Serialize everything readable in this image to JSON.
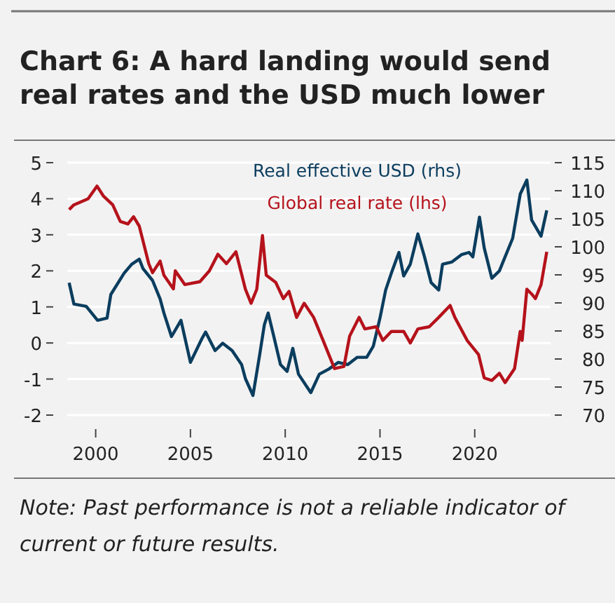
{
  "chart_data": {
    "type": "line",
    "title": "Chart 6: A hard landing would send real rates and the USD much lower",
    "annotations": [
      "Note: Past performance is not a reliable indicator of current or future results."
    ],
    "xlim": [
      1998.5,
      2024
    ],
    "xticks": [
      2000,
      2005,
      2010,
      2015,
      2020
    ],
    "ylim": [
      -2,
      5
    ],
    "yticks": [
      -2,
      -1,
      0,
      1,
      2,
      3,
      4,
      5
    ],
    "y2lim": [
      70,
      115
    ],
    "y2ticks": [
      70,
      75,
      80,
      85,
      90,
      95,
      100,
      105,
      110,
      115
    ],
    "grid": "y",
    "legend": "top",
    "line_style": "solid",
    "series": [
      {
        "name": "Real effective USD (rhs)",
        "color": "#0b3d5e",
        "axis": "y2",
        "x": [
          1998.6,
          1998.85,
          1999.5,
          2000.1,
          2000.6,
          2000.8,
          2001.5,
          2001.9,
          2002.3,
          2002.5,
          2003.0,
          2003.4,
          2003.6,
          2004.0,
          2004.5,
          2005.0,
          2005.6,
          2005.8,
          2006.3,
          2006.7,
          2007.2,
          2007.7,
          2007.9,
          2008.3,
          2008.65,
          2008.9,
          2009.1,
          2009.4,
          2009.75,
          2010.1,
          2010.4,
          2010.7,
          2011.35,
          2011.8,
          2012.3,
          2012.8,
          2013.3,
          2013.8,
          2014.3,
          2014.65,
          2015.0,
          2015.3,
          2015.6,
          2016.0,
          2016.25,
          2016.6,
          2017.0,
          2017.35,
          2017.7,
          2018.1,
          2018.3,
          2018.8,
          2019.3,
          2019.7,
          2019.9,
          2020.25,
          2020.5,
          2020.9,
          2021.3,
          2021.6,
          2022.0,
          2022.4,
          2022.75,
          2023.0,
          2023.5,
          2023.8
        ],
        "values": [
          93.6,
          89.8,
          89.4,
          86.9,
          87.3,
          91.5,
          95.3,
          96.9,
          97.8,
          96.1,
          94,
          90.7,
          88.2,
          84,
          86.9,
          79.4,
          83.6,
          84.8,
          81.5,
          82.8,
          81.5,
          79,
          76.5,
          73.5,
          80.7,
          86.1,
          88.2,
          84,
          79,
          77.8,
          81.9,
          77.3,
          74,
          77.3,
          78.2,
          79.4,
          79,
          80.3,
          80.3,
          82.3,
          87.3,
          92.3,
          95.3,
          99,
          94.8,
          96.9,
          102.3,
          98.2,
          93.6,
          92.3,
          96.9,
          97.3,
          98.6,
          99,
          98.2,
          105.3,
          99.8,
          94.4,
          95.7,
          98.2,
          101.5,
          109.4,
          111.9,
          104.8,
          101.9,
          106.5
        ]
      },
      {
        "name": "Global real rate (lhs)",
        "color": "#b5121b",
        "x": [
          1998.6,
          1998.85,
          1999.6,
          2000.07,
          2000.4,
          2000.9,
          2001.3,
          2001.7,
          2002.0,
          2002.3,
          2002.8,
          2003.0,
          2003.4,
          2003.6,
          2004.1,
          2004.2,
          2004.7,
          2005.5,
          2006.0,
          2006.45,
          2006.9,
          2007.4,
          2007.9,
          2008.2,
          2008.5,
          2008.8,
          2009.0,
          2009.5,
          2009.9,
          2010.2,
          2010.6,
          2011.0,
          2011.5,
          2012.0,
          2012.6,
          2013.1,
          2013.4,
          2013.9,
          2014.2,
          2014.8,
          2015.15,
          2015.6,
          2016.25,
          2016.6,
          2017.0,
          2017.6,
          2018.1,
          2018.7,
          2018.95,
          2019.6,
          2020.2,
          2020.5,
          2020.9,
          2021.3,
          2021.6,
          2022.1,
          2022.4,
          2022.5,
          2022.75,
          2023.0,
          2023.2,
          2023.5,
          2023.8
        ],
        "values": [
          3.7,
          3.83,
          4.0,
          4.35,
          4.08,
          3.83,
          3.37,
          3.3,
          3.5,
          3.24,
          2.2,
          1.95,
          2.27,
          1.88,
          1.5,
          2.0,
          1.62,
          1.7,
          2.0,
          2.46,
          2.2,
          2.53,
          1.49,
          1.1,
          1.49,
          2.98,
          1.88,
          1.68,
          1.23,
          1.43,
          0.71,
          1.1,
          0.71,
          0.07,
          -0.71,
          -0.65,
          0.19,
          0.71,
          0.39,
          0.45,
          0.07,
          0.32,
          0.32,
          0,
          0.39,
          0.45,
          0.71,
          1.04,
          0.71,
          0.07,
          -0.32,
          -0.97,
          -1.04,
          -0.84,
          -1.1,
          -0.71,
          0.32,
          0.07,
          1.49,
          1.36,
          1.23,
          1.62,
          2.53
        ]
      }
    ]
  }
}
